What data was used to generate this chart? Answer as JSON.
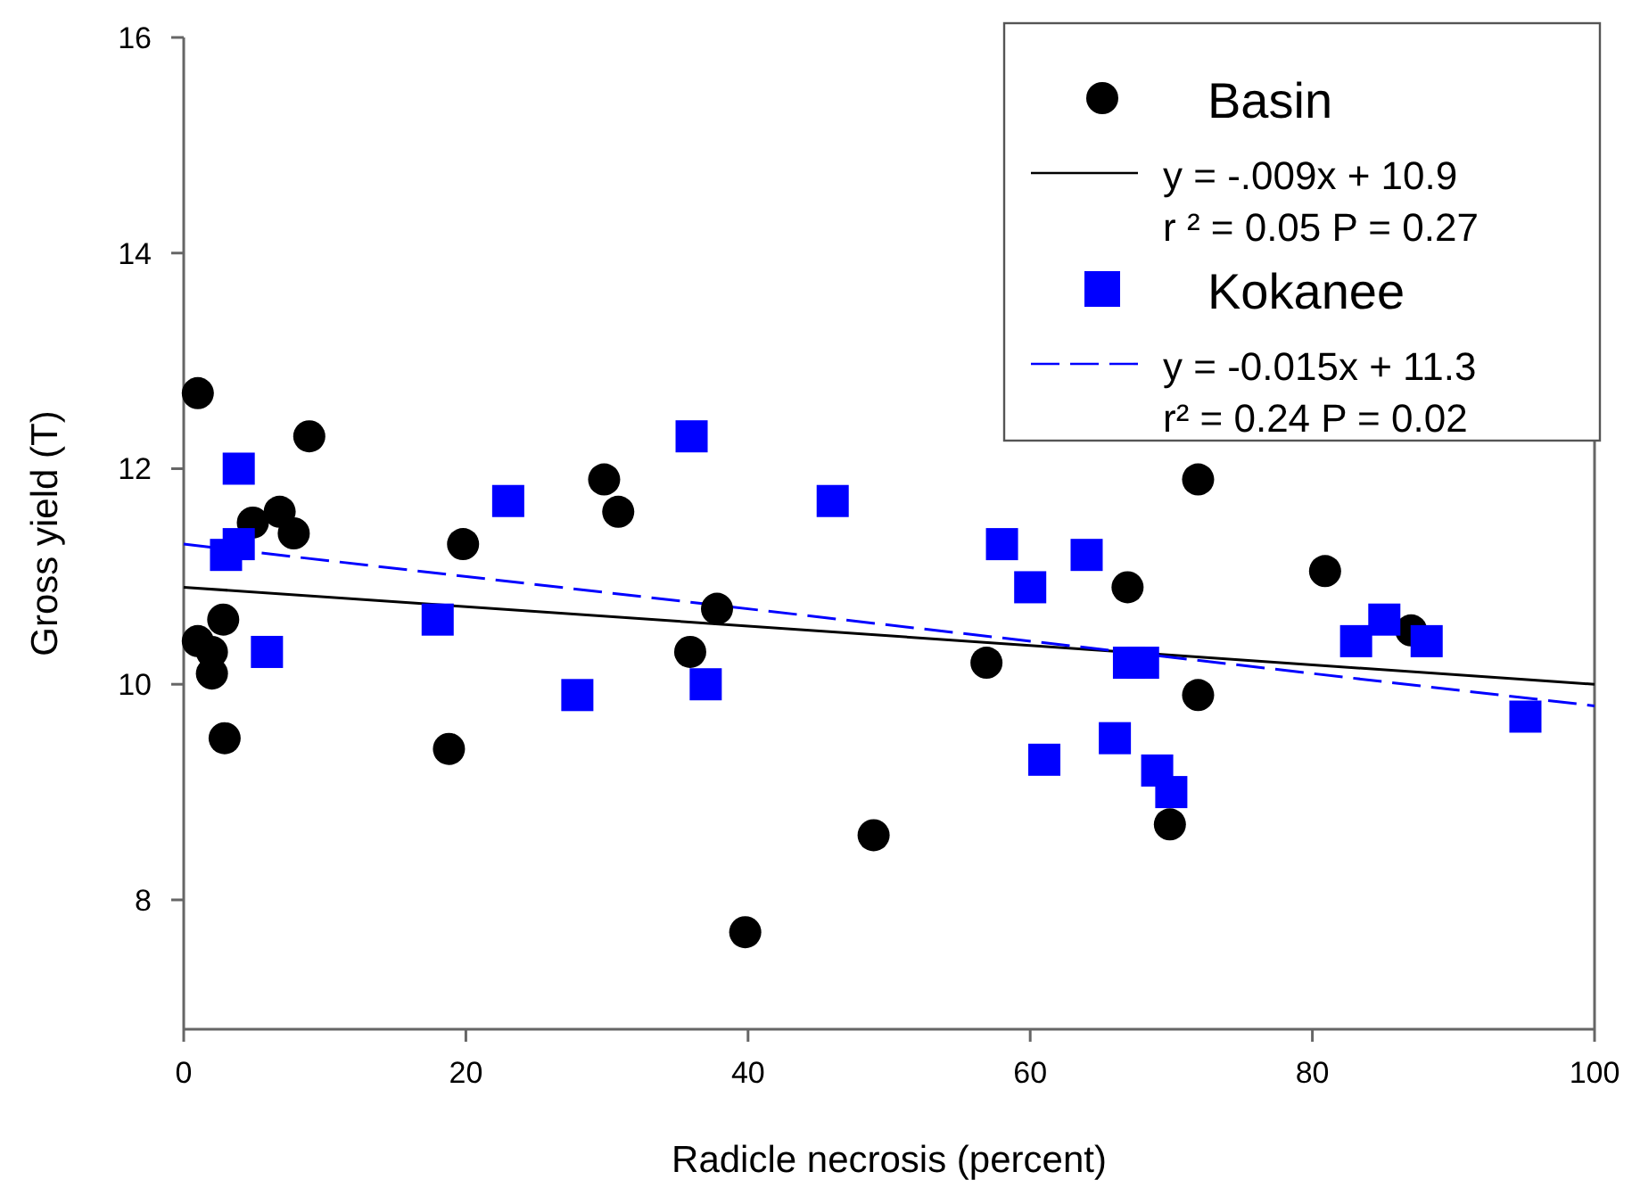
{
  "chart_data": {
    "type": "scatter",
    "xlabel": "Radicle necrosis (percent)",
    "ylabel": "Gross yield (T)",
    "xlim": [
      0,
      100
    ],
    "xticks": [
      0,
      20,
      40,
      60,
      80,
      100
    ],
    "ylim": [
      6.8,
      16
    ],
    "yticks": [
      8,
      10,
      12,
      14,
      16
    ],
    "grid": false,
    "legend": "top right",
    "series": [
      {
        "name": "Basin",
        "marker": "circle",
        "color": "#000000",
        "x": [
          1,
          1,
          2,
          2,
          2.8,
          2.9,
          4.9,
          6.8,
          7.8,
          8.9,
          19.8,
          18.8,
          29.8,
          30.8,
          37.8,
          35.9,
          39.8,
          48.9,
          56.9,
          66.9,
          71.9,
          71.9,
          69.9,
          80.9,
          87
        ],
        "values": [
          12.7,
          10.4,
          10.3,
          10.1,
          10.6,
          9.5,
          11.5,
          11.6,
          11.4,
          12.3,
          11.3,
          9.4,
          11.9,
          11.6,
          10.7,
          10.3,
          7.7,
          8.6,
          10.2,
          10.9,
          11.9,
          9.9,
          8.7,
          11.05,
          10.5
        ]
      },
      {
        "name": "y = -.009x + 10.9",
        "type": "line",
        "line_style": "solid",
        "color": "#000000",
        "x": [
          0,
          100
        ],
        "values": [
          10.9,
          10.0
        ]
      },
      {
        "name": "Kokanee",
        "marker": "square",
        "color": "#0000ff",
        "x": [
          3.9,
          3.9,
          3,
          5.9,
          18,
          23,
          27.9,
          36,
          37,
          46,
          58,
          60,
          64,
          67,
          68,
          61,
          66,
          69,
          70,
          83.1,
          85.1,
          88.1,
          95.1
        ],
        "values": [
          12.0,
          11.3,
          11.2,
          10.3,
          10.6,
          11.7,
          9.9,
          12.3,
          10.0,
          11.7,
          11.3,
          10.9,
          11.2,
          10.2,
          10.2,
          9.3,
          9.5,
          9.2,
          9.0,
          10.4,
          10.6,
          10.4,
          9.7
        ]
      },
      {
        "name": "y = -0.015x + 11.3",
        "type": "line",
        "line_style": "dashed",
        "color": "#0000ff",
        "x": [
          0,
          100
        ],
        "values": [
          11.3,
          9.8
        ]
      }
    ],
    "annotations": [
      "r ² = 0.05  P = 0.27",
      "r² = 0.24  P = 0.02"
    ]
  }
}
